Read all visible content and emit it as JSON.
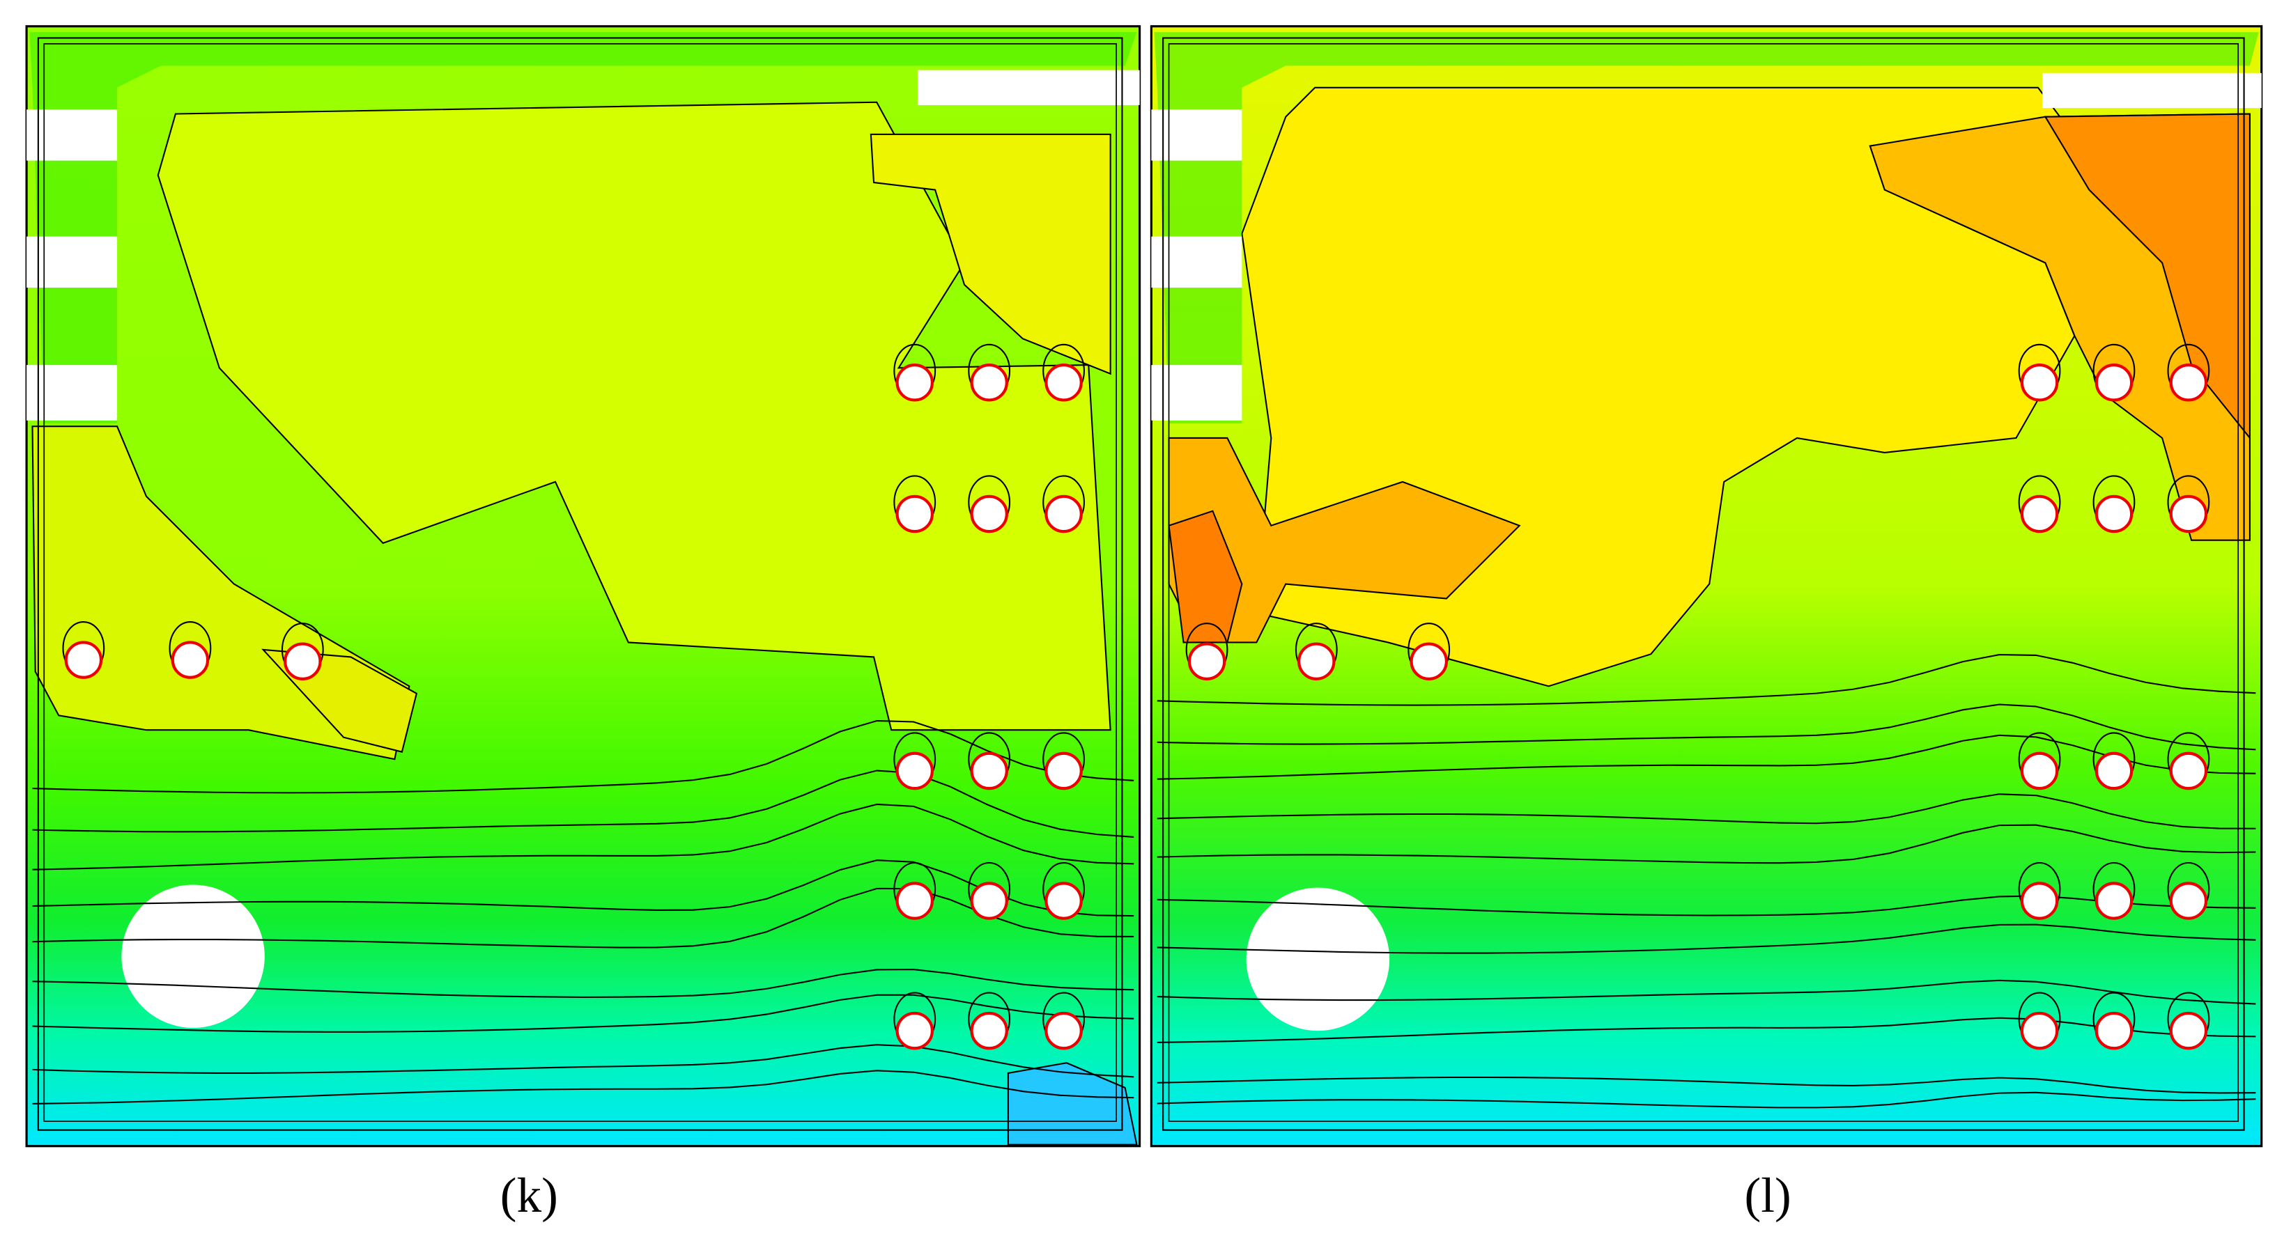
{
  "panels": [
    {
      "label": "(k)"
    },
    {
      "label": "(l)"
    }
  ]
}
